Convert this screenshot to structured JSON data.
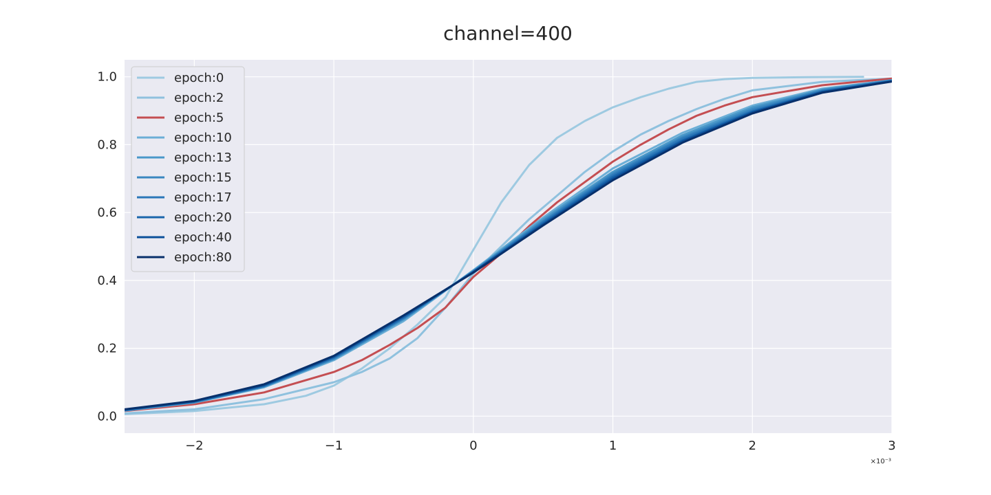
{
  "chart_data": {
    "type": "line",
    "title": "channel=400",
    "xlabel": "",
    "ylabel": "",
    "x_offset_label": "×10⁻³",
    "xlim": [
      -2.5,
      3.0
    ],
    "ylim": [
      -0.05,
      1.05
    ],
    "grid": true,
    "legend_placement": "top-left",
    "xticks": [
      {
        "value": -2,
        "label": "−2"
      },
      {
        "value": -1,
        "label": "−1"
      },
      {
        "value": 0,
        "label": "0"
      },
      {
        "value": 1,
        "label": "1"
      },
      {
        "value": 2,
        "label": "2"
      },
      {
        "value": 3,
        "label": "3"
      }
    ],
    "yticks": [
      {
        "value": 0.0,
        "label": "0.0"
      },
      {
        "value": 0.2,
        "label": "0.2"
      },
      {
        "value": 0.4,
        "label": "0.4"
      },
      {
        "value": 0.6,
        "label": "0.6"
      },
      {
        "value": 0.8,
        "label": "0.8"
      },
      {
        "value": 1.0,
        "label": "1.0"
      }
    ],
    "colors": {
      "background": "#eaeaf2",
      "grid": "#ffffff"
    },
    "series": [
      {
        "name": "epoch:0",
        "color": "#9ecae1",
        "x": [
          -2.5,
          -2.0,
          -1.5,
          -1.2,
          -1.0,
          -0.8,
          -0.6,
          -0.4,
          -0.2,
          0.0,
          0.2,
          0.4,
          0.6,
          0.8,
          1.0,
          1.2,
          1.4,
          1.6,
          1.8,
          2.0,
          2.4,
          2.8
        ],
        "y": [
          0.006,
          0.015,
          0.035,
          0.06,
          0.09,
          0.14,
          0.2,
          0.27,
          0.35,
          0.49,
          0.63,
          0.74,
          0.82,
          0.87,
          0.91,
          0.94,
          0.965,
          0.985,
          0.993,
          0.997,
          0.999,
          1.0
        ]
      },
      {
        "name": "epoch:2",
        "color": "#8fc1de",
        "x": [
          -2.5,
          -2.0,
          -1.5,
          -1.0,
          -0.8,
          -0.6,
          -0.4,
          -0.2,
          0.0,
          0.2,
          0.4,
          0.6,
          0.8,
          1.0,
          1.2,
          1.4,
          1.6,
          1.8,
          2.0,
          2.5,
          3.0
        ],
        "y": [
          0.008,
          0.02,
          0.05,
          0.1,
          0.13,
          0.17,
          0.23,
          0.32,
          0.42,
          0.5,
          0.58,
          0.65,
          0.72,
          0.78,
          0.83,
          0.87,
          0.905,
          0.935,
          0.96,
          0.985,
          0.995
        ]
      },
      {
        "name": "epoch:5",
        "color": "#c44e52",
        "x": [
          -2.5,
          -2.0,
          -1.5,
          -1.0,
          -0.8,
          -0.6,
          -0.4,
          -0.2,
          0.0,
          0.2,
          0.4,
          0.6,
          0.8,
          1.0,
          1.2,
          1.4,
          1.6,
          1.8,
          2.0,
          2.5,
          3.0
        ],
        "y": [
          0.015,
          0.035,
          0.07,
          0.13,
          0.165,
          0.21,
          0.26,
          0.32,
          0.41,
          0.48,
          0.56,
          0.63,
          0.69,
          0.75,
          0.8,
          0.845,
          0.885,
          0.915,
          0.94,
          0.975,
          0.995
        ]
      },
      {
        "name": "epoch:10",
        "color": "#6baed6",
        "x": [
          -2.5,
          -2.0,
          -1.5,
          -1.0,
          -0.5,
          0.0,
          0.5,
          1.0,
          1.5,
          2.0,
          2.5,
          3.0
        ],
        "y": [
          0.016,
          0.04,
          0.085,
          0.165,
          0.28,
          0.43,
          0.585,
          0.73,
          0.835,
          0.915,
          0.965,
          0.99
        ]
      },
      {
        "name": "epoch:13",
        "color": "#4a98c9",
        "x": [
          -2.5,
          -2.0,
          -1.5,
          -1.0,
          -0.5,
          0.0,
          0.5,
          1.0,
          1.5,
          2.0,
          2.5,
          3.0
        ],
        "y": [
          0.017,
          0.041,
          0.087,
          0.168,
          0.285,
          0.428,
          0.58,
          0.72,
          0.828,
          0.91,
          0.962,
          0.99
        ]
      },
      {
        "name": "epoch:15",
        "color": "#3a87c0",
        "x": [
          -2.5,
          -2.0,
          -1.5,
          -1.0,
          -0.5,
          0.0,
          0.5,
          1.0,
          1.5,
          2.0,
          2.5,
          3.0
        ],
        "y": [
          0.017,
          0.042,
          0.088,
          0.17,
          0.288,
          0.427,
          0.575,
          0.715,
          0.822,
          0.905,
          0.96,
          0.989
        ]
      },
      {
        "name": "epoch:17",
        "color": "#2b77b8",
        "x": [
          -2.5,
          -2.0,
          -1.5,
          -1.0,
          -0.5,
          0.0,
          0.5,
          1.0,
          1.5,
          2.0,
          2.5,
          3.0
        ],
        "y": [
          0.018,
          0.042,
          0.089,
          0.172,
          0.29,
          0.426,
          0.572,
          0.71,
          0.818,
          0.9,
          0.958,
          0.988
        ]
      },
      {
        "name": "epoch:20",
        "color": "#1a66ab",
        "x": [
          -2.5,
          -2.0,
          -1.5,
          -1.0,
          -0.5,
          0.0,
          0.5,
          1.0,
          1.5,
          2.0,
          2.5,
          3.0
        ],
        "y": [
          0.018,
          0.043,
          0.09,
          0.174,
          0.292,
          0.425,
          0.568,
          0.705,
          0.813,
          0.897,
          0.956,
          0.987
        ]
      },
      {
        "name": "epoch:40",
        "color": "#0c509a",
        "x": [
          -2.5,
          -2.0,
          -1.5,
          -1.0,
          -0.5,
          0.0,
          0.5,
          1.0,
          1.5,
          2.0,
          2.5,
          3.0
        ],
        "y": [
          0.019,
          0.044,
          0.092,
          0.176,
          0.295,
          0.424,
          0.565,
          0.7,
          0.81,
          0.895,
          0.955,
          0.987
        ]
      },
      {
        "name": "epoch:80",
        "color": "#08306b",
        "x": [
          -2.5,
          -2.0,
          -1.5,
          -1.0,
          -0.5,
          0.0,
          0.5,
          1.0,
          1.5,
          2.0,
          2.5,
          3.0
        ],
        "y": [
          0.02,
          0.045,
          0.094,
          0.178,
          0.297,
          0.423,
          0.562,
          0.695,
          0.806,
          0.892,
          0.953,
          0.986
        ]
      }
    ]
  }
}
